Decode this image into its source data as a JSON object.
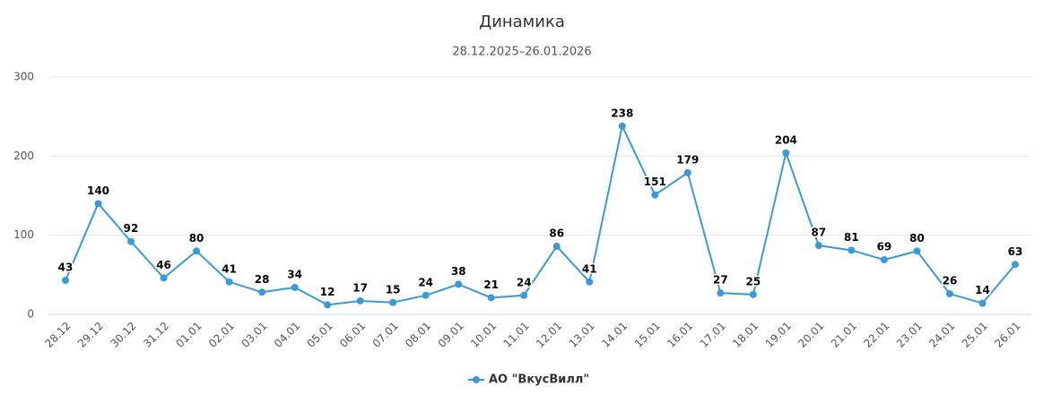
{
  "chart_data": {
    "type": "line",
    "title": "Динамика",
    "subtitle": "28.12.2025–26.01.2026",
    "categories": [
      "28.12",
      "29.12",
      "30.12",
      "31.12",
      "01.01",
      "02.01",
      "03.01",
      "04.01",
      "05.01",
      "06.01",
      "07.01",
      "08.01",
      "09.01",
      "10.01",
      "11.01",
      "12.01",
      "13.01",
      "14.01",
      "15.01",
      "16.01",
      "17.01",
      "18.01",
      "19.01",
      "20.01",
      "21.01",
      "22.01",
      "23.01",
      "24.01",
      "25.01",
      "26.01"
    ],
    "series": [
      {
        "name": "АО \"ВкусВилл\"",
        "color": "#3a9ad9",
        "values": [
          43,
          140,
          92,
          46,
          80,
          41,
          28,
          34,
          12,
          17,
          15,
          24,
          38,
          21,
          24,
          86,
          41,
          238,
          151,
          179,
          27,
          25,
          204,
          87,
          81,
          69,
          80,
          26,
          14,
          63
        ]
      }
    ],
    "ylim": [
      0,
      300
    ],
    "yticks": [
      0,
      100,
      200,
      300
    ],
    "grid": true
  }
}
